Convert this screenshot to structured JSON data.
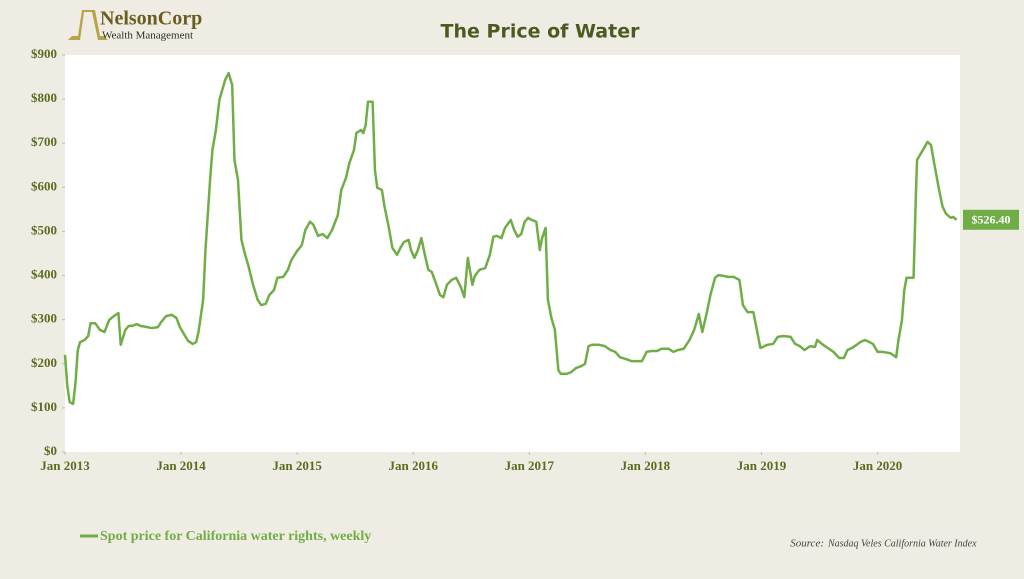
{
  "logo": {
    "name": "NelsonCorp",
    "tagline": "Wealth Management"
  },
  "chart_data": {
    "type": "line",
    "title": "The Price of Water",
    "x": [
      2013.0,
      2013.02,
      2013.04,
      2013.07,
      2013.09,
      2013.11,
      2013.13,
      2013.17,
      2013.2,
      2013.22,
      2013.26,
      2013.3,
      2013.34,
      2013.38,
      2013.42,
      2013.46,
      2013.48,
      2013.52,
      2013.55,
      2013.58,
      2013.62,
      2013.65,
      2013.71,
      2013.75,
      2013.8,
      2013.83,
      2013.87,
      2013.92,
      2013.96,
      2013.99,
      2014.03,
      2014.06,
      2014.1,
      2014.13,
      2014.15,
      2014.19,
      2014.21,
      2014.25,
      2014.27,
      2014.3,
      2014.33,
      2014.38,
      2014.41,
      2014.44,
      2014.46,
      2014.49,
      2014.52,
      2014.55,
      2014.58,
      2014.62,
      2014.66,
      2014.69,
      2014.73,
      2014.76,
      2014.8,
      2014.83,
      2014.88,
      2014.92,
      2014.95,
      2015.0,
      2015.04,
      2015.07,
      2015.11,
      2015.14,
      2015.18,
      2015.22,
      2015.26,
      2015.3,
      2015.35,
      2015.38,
      2015.42,
      2015.45,
      2015.49,
      2015.51,
      2015.55,
      2015.57,
      2015.59,
      2015.61,
      2015.65,
      2015.67,
      2015.69,
      2015.73,
      2015.75,
      2015.79,
      2015.82,
      2015.86,
      2015.89,
      2015.92,
      2015.96,
      2015.98,
      2016.01,
      2016.04,
      2016.07,
      2016.1,
      2016.13,
      2016.16,
      2016.2,
      2016.23,
      2016.26,
      2016.29,
      2016.33,
      2016.37,
      2016.41,
      2016.44,
      2016.47,
      2016.51,
      2016.53,
      2016.57,
      2016.62,
      2016.66,
      2016.69,
      2016.72,
      2016.76,
      2016.79,
      2016.84,
      2016.87,
      2016.9,
      2016.93,
      2016.96,
      2016.99,
      2017.02,
      2017.06,
      2017.09,
      2017.11,
      2017.14,
      2017.16,
      2017.19,
      2017.22,
      2017.25,
      2017.27,
      2017.32,
      2017.36,
      2017.4,
      2017.45,
      2017.48,
      2017.51,
      2017.54,
      2017.6,
      2017.65,
      2017.7,
      2017.74,
      2017.78,
      2017.83,
      2017.88,
      2017.93,
      2017.97,
      2018.01,
      2018.05,
      2018.1,
      2018.14,
      2018.2,
      2018.24,
      2018.28,
      2018.33,
      2018.38,
      2018.42,
      2018.46,
      2018.49,
      2018.53,
      2018.56,
      2018.6,
      2018.63,
      2018.68,
      2018.71,
      2018.76,
      2018.81,
      2018.84,
      2018.88,
      2018.93,
      2018.96,
      2018.99,
      2019.01,
      2019.05,
      2019.1,
      2019.14,
      2019.19,
      2019.25,
      2019.29,
      2019.33,
      2019.37,
      2019.42,
      2019.46,
      2019.48,
      2019.53,
      2019.57,
      2019.62,
      2019.67,
      2019.71,
      2019.74,
      2019.78,
      2019.82,
      2019.85,
      2019.89,
      2019.93,
      2019.96,
      2020.0,
      2020.04,
      2020.11,
      2020.16,
      2020.18,
      2020.21,
      2020.23,
      2020.25,
      2020.28,
      2020.31,
      2020.33,
      2020.34,
      2020.38,
      2020.4,
      2020.43,
      2020.46,
      2020.49,
      2020.53,
      2020.56,
      2020.59,
      2020.63,
      2020.65,
      2020.68
    ],
    "series": [
      {
        "name": "Spot price for California water rights, weekly",
        "color": "#70ad47",
        "values": [
          220,
          150,
          113,
          109,
          156,
          231,
          249,
          254,
          263,
          292,
          292,
          277,
          272,
          299,
          308,
          315,
          243,
          277,
          286,
          286,
          290,
          286,
          283,
          281,
          283,
          295,
          308,
          311,
          304,
          283,
          265,
          252,
          245,
          249,
          272,
          345,
          458,
          617,
          685,
          730,
          798,
          844,
          859,
          832,
          662,
          617,
          481,
          449,
          422,
          379,
          345,
          333,
          336,
          356,
          367,
          395,
          397,
          413,
          435,
          456,
          469,
          503,
          522,
          515,
          490,
          494,
          485,
          503,
          537,
          594,
          621,
          655,
          685,
          723,
          730,
          723,
          741,
          794,
          794,
          639,
          599,
          594,
          560,
          508,
          463,
          447,
          463,
          476,
          481,
          458,
          440,
          458,
          485,
          447,
          413,
          408,
          379,
          356,
          351,
          379,
          390,
          395,
          374,
          351,
          440,
          379,
          399,
          413,
          417,
          447,
          488,
          490,
          485,
          508,
          526,
          503,
          488,
          494,
          522,
          531,
          526,
          522,
          458,
          485,
          508,
          345,
          304,
          277,
          186,
          177,
          177,
          181,
          190,
          195,
          200,
          240,
          243,
          243,
          240,
          231,
          227,
          215,
          211,
          206,
          206,
          206,
          227,
          229,
          229,
          234,
          234,
          227,
          231,
          234,
          254,
          277,
          313,
          272,
          317,
          356,
          395,
          401,
          399,
          397,
          397,
          390,
          333,
          317,
          317,
          277,
          236,
          238,
          243,
          245,
          261,
          263,
          261,
          245,
          240,
          231,
          240,
          238,
          254,
          243,
          236,
          227,
          213,
          213,
          231,
          236,
          243,
          249,
          254,
          249,
          245,
          227,
          227,
          224,
          215,
          254,
          299,
          367,
          395,
          395,
          395,
          583,
          662,
          680,
          689,
          703,
          696,
          651,
          594,
          556,
          540,
          531,
          533,
          526.4
        ]
      }
    ],
    "end_label": "$526.40",
    "xlim": [
      2013,
      2020.71
    ],
    "xticks": [
      {
        "value": 2013,
        "label": "Jan 2013"
      },
      {
        "value": 2014,
        "label": "Jan 2014"
      },
      {
        "value": 2015,
        "label": "Jan 2015"
      },
      {
        "value": 2016,
        "label": "Jan 2016"
      },
      {
        "value": 2017,
        "label": "Jan 2017"
      },
      {
        "value": 2018,
        "label": "Jan 2018"
      },
      {
        "value": 2019,
        "label": "Jan 2019"
      },
      {
        "value": 2020,
        "label": "Jan 2020"
      }
    ],
    "ylim": [
      0,
      900
    ],
    "yticks": [
      {
        "value": 0,
        "label": "$0"
      },
      {
        "value": 100,
        "label": "$100"
      },
      {
        "value": 200,
        "label": "$200"
      },
      {
        "value": 300,
        "label": "$300"
      },
      {
        "value": 400,
        "label": "$400"
      },
      {
        "value": 500,
        "label": "$500"
      },
      {
        "value": 600,
        "label": "$600"
      },
      {
        "value": 700,
        "label": "$700"
      },
      {
        "value": 800,
        "label": "$800"
      },
      {
        "value": 900,
        "label": "$900"
      }
    ],
    "source_label": "Source:",
    "source": "Nasdaq Veles California Water Index"
  }
}
